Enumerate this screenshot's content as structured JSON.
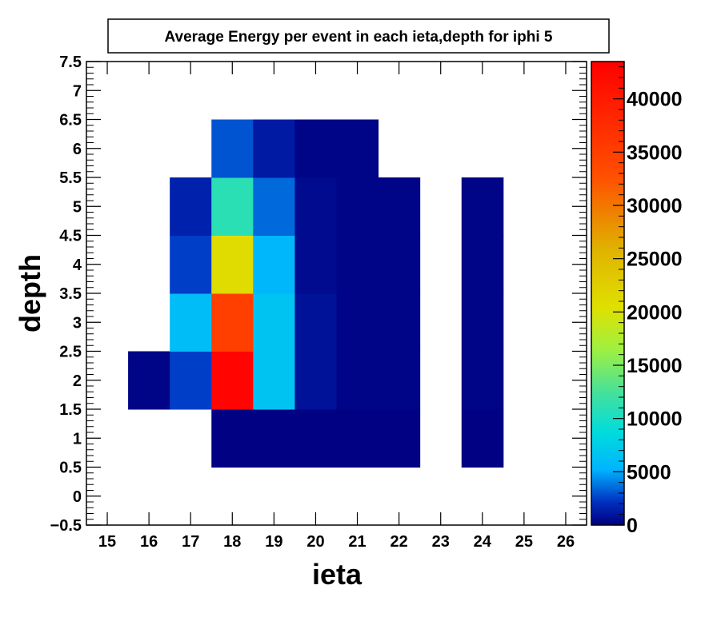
{
  "chart_data": {
    "type": "heatmap",
    "title": "Average Energy per event in each ieta,depth for iphi 5",
    "xlabel": "ieta",
    "ylabel": "depth",
    "xlim": [
      14.5,
      26.5
    ],
    "ylim": [
      -0.5,
      7.5
    ],
    "x_ticks": [
      15,
      16,
      17,
      18,
      19,
      20,
      21,
      22,
      23,
      24,
      25,
      26
    ],
    "y_ticks": [
      "−0.5",
      "0",
      "0.5",
      "1",
      "1.5",
      "2",
      "2.5",
      "3",
      "3.5",
      "4",
      "4.5",
      "5",
      "5.5",
      "6",
      "6.5",
      "7",
      "7.5"
    ],
    "zlim": [
      0,
      43500
    ],
    "z_ticks": [
      0,
      5000,
      10000,
      15000,
      20000,
      25000,
      30000,
      35000,
      40000
    ],
    "colormap": "rainbow",
    "cells": [
      {
        "x": 18,
        "y": 1,
        "z": 100
      },
      {
        "x": 19,
        "y": 1,
        "z": 100
      },
      {
        "x": 20,
        "y": 1,
        "z": 100
      },
      {
        "x": 21,
        "y": 1,
        "z": 100
      },
      {
        "x": 22,
        "y": 1,
        "z": 100
      },
      {
        "x": 24,
        "y": 1,
        "z": 100
      },
      {
        "x": 16,
        "y": 2.5,
        "z": 200
      },
      {
        "x": 17,
        "y": 2.5,
        "z": 2500
      },
      {
        "x": 18,
        "y": 2.5,
        "z": 43000
      },
      {
        "x": 19,
        "y": 2.5,
        "z": 6500
      },
      {
        "x": 20,
        "y": 2.5,
        "z": 800
      },
      {
        "x": 21,
        "y": 2.5,
        "z": 200
      },
      {
        "x": 22,
        "y": 2.5,
        "z": 200
      },
      {
        "x": 24,
        "y": 2.5,
        "z": 200
      },
      {
        "x": 17,
        "y": 3.5,
        "z": 6000
      },
      {
        "x": 18,
        "y": 3.5,
        "z": 35000
      },
      {
        "x": 19,
        "y": 3.5,
        "z": 6500
      },
      {
        "x": 20,
        "y": 3.5,
        "z": 800
      },
      {
        "x": 21,
        "y": 3.5,
        "z": 200
      },
      {
        "x": 22,
        "y": 3.5,
        "z": 200
      },
      {
        "x": 24,
        "y": 3.5,
        "z": 200
      },
      {
        "x": 17,
        "y": 4.5,
        "z": 2500
      },
      {
        "x": 18,
        "y": 4.5,
        "z": 21000
      },
      {
        "x": 19,
        "y": 4.5,
        "z": 5500
      },
      {
        "x": 20,
        "y": 4.5,
        "z": 500
      },
      {
        "x": 21,
        "y": 4.5,
        "z": 200
      },
      {
        "x": 22,
        "y": 4.5,
        "z": 200
      },
      {
        "x": 24,
        "y": 4.5,
        "z": 200
      },
      {
        "x": 17,
        "y": 5,
        "z": 1500
      },
      {
        "x": 18,
        "y": 5,
        "z": 11000
      },
      {
        "x": 19,
        "y": 5,
        "z": 3500
      },
      {
        "x": 20,
        "y": 5,
        "z": 500
      },
      {
        "x": 21,
        "y": 5,
        "z": 200
      },
      {
        "x": 22,
        "y": 5,
        "z": 200
      },
      {
        "x": 24,
        "y": 5,
        "z": 200
      },
      {
        "x": 18,
        "y": 6,
        "z": 3000
      },
      {
        "x": 19,
        "y": 6,
        "z": 1200
      },
      {
        "x": 20,
        "y": 6,
        "z": 200
      },
      {
        "x": 21,
        "y": 6,
        "z": 200
      }
    ],
    "cell_bounds_note": ""
  }
}
